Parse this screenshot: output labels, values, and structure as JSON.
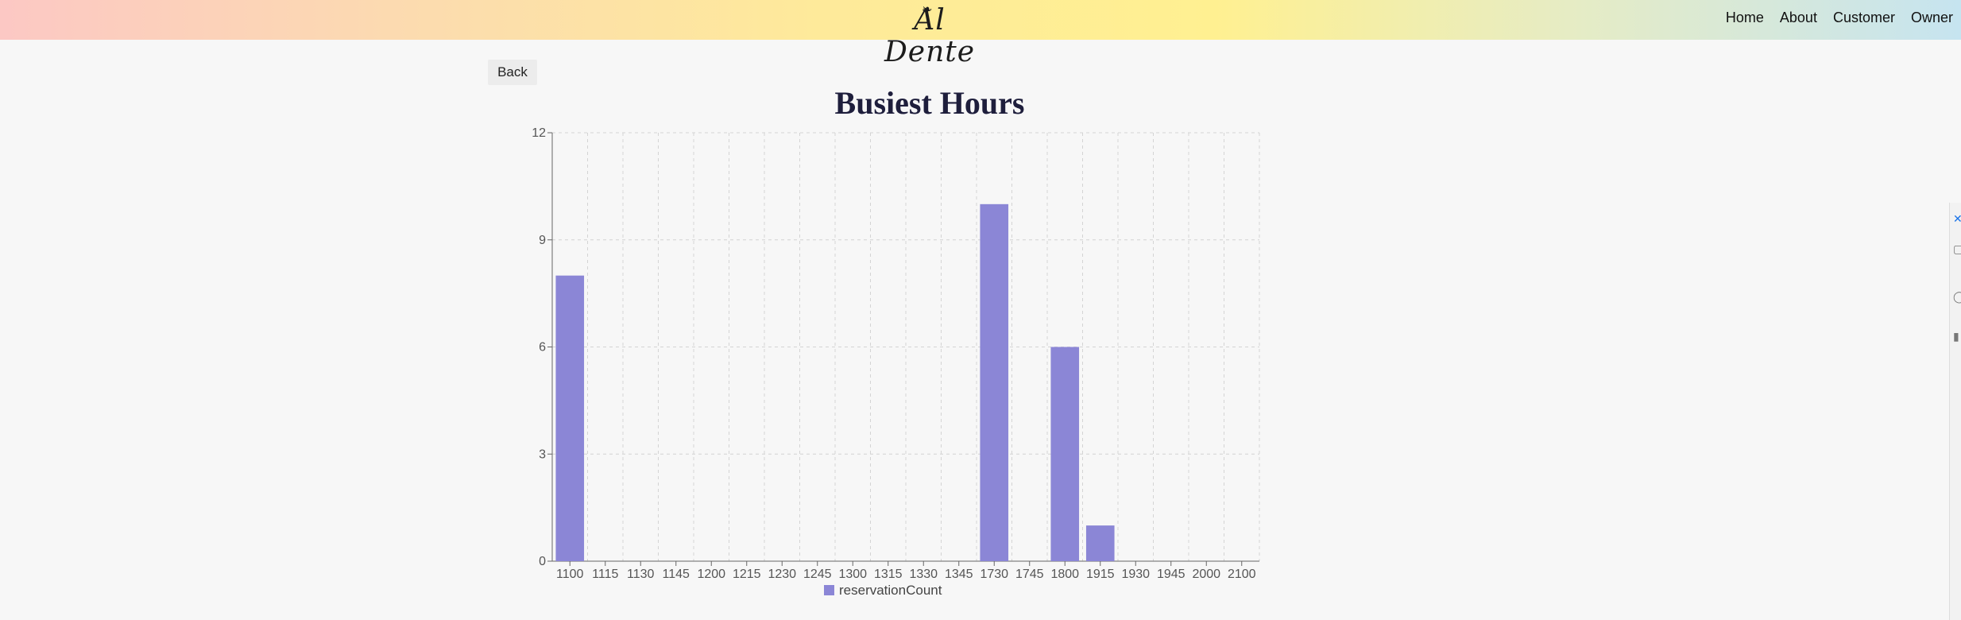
{
  "nav": {
    "logo": "Al Dente",
    "links": [
      "Home",
      "About",
      "Customer",
      "Owner"
    ]
  },
  "back_label": "Back",
  "colors": {
    "bar": "#8b86d6",
    "title": "#1e1e3c"
  },
  "chart_data": {
    "type": "bar",
    "title": "Busiest Hours",
    "xlabel": "",
    "ylabel": "",
    "categories": [
      "1100",
      "1115",
      "1130",
      "1145",
      "1200",
      "1215",
      "1230",
      "1245",
      "1300",
      "1315",
      "1330",
      "1345",
      "1730",
      "1745",
      "1800",
      "1915",
      "1930",
      "1945",
      "2000",
      "2100"
    ],
    "series": [
      {
        "name": "reservationCount",
        "values": [
          8,
          0,
          0,
          0,
          0,
          0,
          0,
          0,
          0,
          0,
          0,
          0,
          10,
          0,
          6,
          1,
          0,
          0,
          0,
          0
        ]
      }
    ],
    "yticks": [
      0,
      3,
      6,
      9,
      12
    ],
    "ylim": [
      0,
      12
    ],
    "grid": true,
    "legend": "bottom"
  }
}
